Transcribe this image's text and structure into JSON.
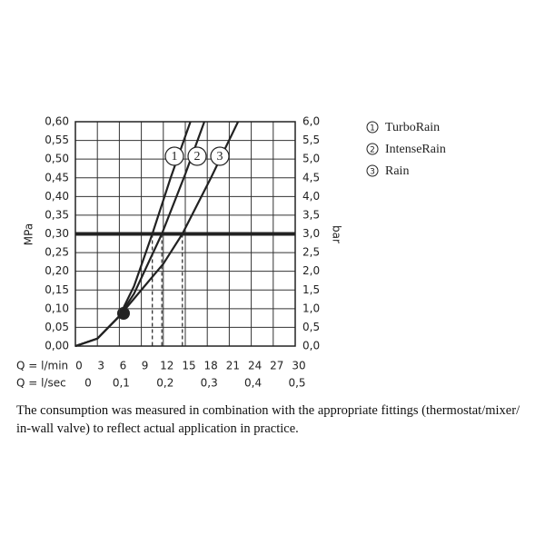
{
  "chart_data": {
    "type": "line",
    "x_label": "Q = l/min",
    "x2_label": "Q = l/sec",
    "y_label": "MPa",
    "y2_label": "bar",
    "xlim": [
      0,
      30
    ],
    "xticks": [
      0,
      3,
      6,
      9,
      12,
      15,
      18,
      21,
      24,
      27,
      30
    ],
    "x2lim": [
      0,
      0.5
    ],
    "x2ticks": [
      0,
      {
        "value": 0.1,
        "label": "0,1"
      },
      {
        "value": 0.2,
        "label": "0,2"
      },
      {
        "value": 0.3,
        "label": "0,3"
      },
      {
        "value": 0.4,
        "label": "0,4"
      },
      {
        "value": 0.5,
        "label": "0,5"
      }
    ],
    "ylim": [
      0,
      0.6
    ],
    "yticks": [
      {
        "value": 0,
        "label": "0,00"
      },
      {
        "value": 0.05,
        "label": "0,05"
      },
      {
        "value": 0.1,
        "label": "0,10"
      },
      {
        "value": 0.15,
        "label": "0,15"
      },
      {
        "value": 0.2,
        "label": "0,20"
      },
      {
        "value": 0.25,
        "label": "0,25"
      },
      {
        "value": 0.3,
        "label": "0,30"
      },
      {
        "value": 0.35,
        "label": "0,35"
      },
      {
        "value": 0.4,
        "label": "0,40"
      },
      {
        "value": 0.45,
        "label": "0,45"
      },
      {
        "value": 0.5,
        "label": "0,50"
      },
      {
        "value": 0.55,
        "label": "0,55"
      },
      {
        "value": 0.6,
        "label": "0,60"
      }
    ],
    "y2lim": [
      0,
      6
    ],
    "y2ticks": [
      {
        "value": 0,
        "label": "0,0"
      },
      {
        "value": 0.5,
        "label": "0,5"
      },
      {
        "value": 1,
        "label": "1,0"
      },
      {
        "value": 1.5,
        "label": "1,5"
      },
      {
        "value": 2,
        "label": "2,0"
      },
      {
        "value": 2.5,
        "label": "2,5"
      },
      {
        "value": 3,
        "label": "3,0"
      },
      {
        "value": 3.5,
        "label": "3,5"
      },
      {
        "value": 4,
        "label": "4,0"
      },
      {
        "value": 4.5,
        "label": "4,5"
      },
      {
        "value": 5,
        "label": "5,0"
      },
      {
        "value": 5.5,
        "label": "5,5"
      },
      {
        "value": 6,
        "label": "6,0"
      }
    ],
    "grid": true,
    "hline": 0.3,
    "series": [
      {
        "name": "TurboRain",
        "label": "1",
        "color": "#222222",
        "x": [
          0,
          3,
          6,
          8,
          10.5,
          13,
          15.7
        ],
        "values": [
          0,
          0.02,
          0.08,
          0.16,
          0.3,
          0.45,
          0.6
        ]
      },
      {
        "name": "IntenseRain",
        "label": "2",
        "color": "#222222",
        "x": [
          0,
          3,
          6,
          8,
          11.8,
          15,
          17.6
        ],
        "values": [
          0,
          0.02,
          0.08,
          0.14,
          0.3,
          0.46,
          0.6
        ]
      },
      {
        "name": "Rain",
        "label": "3",
        "color": "#222222",
        "x": [
          0,
          3,
          6,
          9,
          12,
          14.6,
          18.5,
          22.2
        ],
        "values": [
          0,
          0.02,
          0.08,
          0.15,
          0.22,
          0.3,
          0.45,
          0.6
        ]
      }
    ],
    "footnote": [
      "The consumption was measured in combination with the appropriate fittings (thermostat/mixer/",
      "in-wall valve) to reflect actual application in practice."
    ]
  }
}
